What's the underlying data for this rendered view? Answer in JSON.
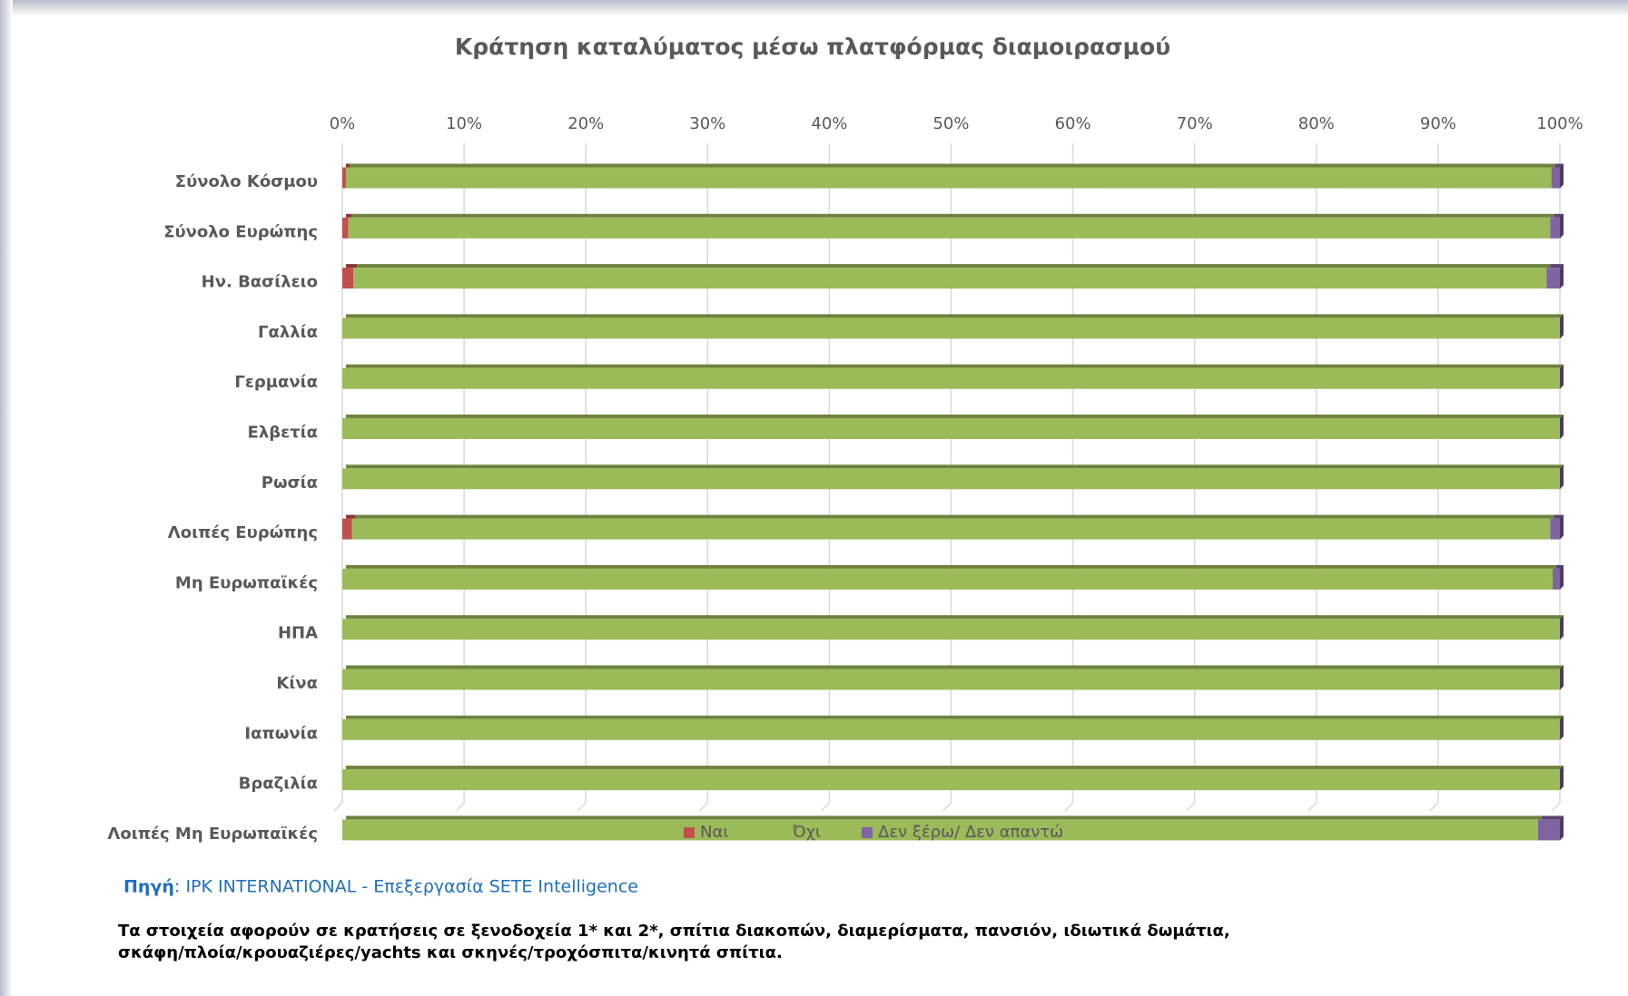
{
  "chart_data": {
    "type": "stacked_barh",
    "title": "Κράτηση καταλύματος μέσω πλατφόρμας διαμοιρασμού",
    "categories": [
      "Σύνολο Κόσμου",
      "Σύνολο Ευρώπης",
      "Ην. Βασίλειο",
      "Γαλλία",
      "Γερμανία",
      "Ελβετία",
      "Ρωσία",
      "Λοιπές Ευρώπης",
      "Μη Ευρωπαϊκές",
      "ΗΠΑ",
      "Κίνα",
      "Ιαπωνία",
      "Βραζιλία",
      "Λοιπές Μη Ευρωπαϊκές"
    ],
    "series": [
      {
        "name": "Ναι",
        "color": "#c0504d",
        "values": [
          0.3,
          0.5,
          0.9,
          0,
          0,
          0,
          0,
          0.8,
          0,
          0,
          0,
          0,
          0,
          0
        ]
      },
      {
        "name": "Όχι",
        "color": "#9bbb59",
        "values": [
          99,
          98.7,
          98,
          100,
          100,
          100,
          100,
          98.4,
          99.4,
          100,
          100,
          100,
          100,
          98.2
        ]
      },
      {
        "name": "Δεν ξέρω/ Δεν απαντώ",
        "color": "#8064a2",
        "values": [
          0.7,
          0.8,
          1.1,
          0,
          0,
          0,
          0,
          0.8,
          0.6,
          0,
          0,
          0,
          0,
          1.8
        ]
      }
    ],
    "xlim": [
      0,
      100
    ],
    "xticks": [
      {
        "value": 0,
        "label": "0%"
      },
      {
        "value": 10,
        "label": "10%"
      },
      {
        "value": 20,
        "label": "20%"
      },
      {
        "value": 30,
        "label": "30%"
      },
      {
        "value": 40,
        "label": "40%"
      },
      {
        "value": 50,
        "label": "50%"
      },
      {
        "value": 60,
        "label": "60%"
      },
      {
        "value": 70,
        "label": "70%"
      },
      {
        "value": 80,
        "label": "80%"
      },
      {
        "value": 90,
        "label": "90%"
      },
      {
        "value": 100,
        "label": "100%"
      }
    ],
    "grid": true,
    "legend": "bottom",
    "source_label": "Πηγή",
    "source_text": ": IPK INTERNATIONAL - Επεξεργασία SETE Intelligence",
    "note": [
      "Τα στοιχεία αφορούν σε κρατήσεις σε ξενοδοχεία 1* και 2*, σπίτια διακοπών, διαμερίσματα, πανσιόν, ιδιωτικά δωμάτια,",
      "σκάφη/πλοία/κρουαζιέρες/yachts και σκηνές/τροχόσπιτα/κινητά σπίτια."
    ]
  }
}
